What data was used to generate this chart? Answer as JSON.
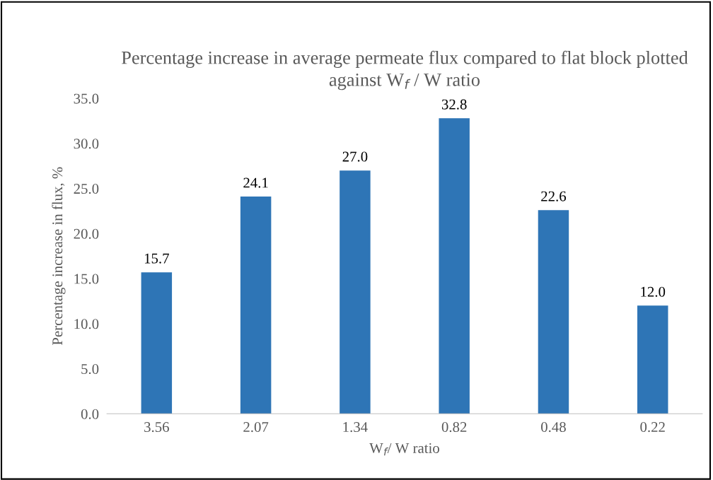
{
  "chart_data": {
    "type": "bar",
    "title": "Percentage increase in average permeate flux compared to flat block plotted against W$_{f}$ / W ratio",
    "xlabel": "W$_{f}$/ W ratio",
    "ylabel": "Percentage increase in flux, %",
    "categories": [
      "3.56",
      "2.07",
      "1.34",
      "0.82",
      "0.48",
      "0.22"
    ],
    "values": [
      15.7,
      24.1,
      27.0,
      32.8,
      22.6,
      12.0
    ],
    "value_labels": [
      "15.7",
      "24.1",
      "27.0",
      "32.8",
      "22.6",
      "12.0"
    ],
    "color": "#2e75b6",
    "ylim": [
      0,
      35
    ],
    "yticks": [
      {
        "value": 0,
        "label": "0.0"
      },
      {
        "value": 5,
        "label": "5.0"
      },
      {
        "value": 10,
        "label": "10.0"
      },
      {
        "value": 15,
        "label": "15.0"
      },
      {
        "value": 20,
        "label": "20.0"
      },
      {
        "value": 25,
        "label": "25.0"
      },
      {
        "value": 30,
        "label": "30.0"
      },
      {
        "value": 35,
        "label": "35.0"
      }
    ],
    "grid": false,
    "legend": false
  }
}
